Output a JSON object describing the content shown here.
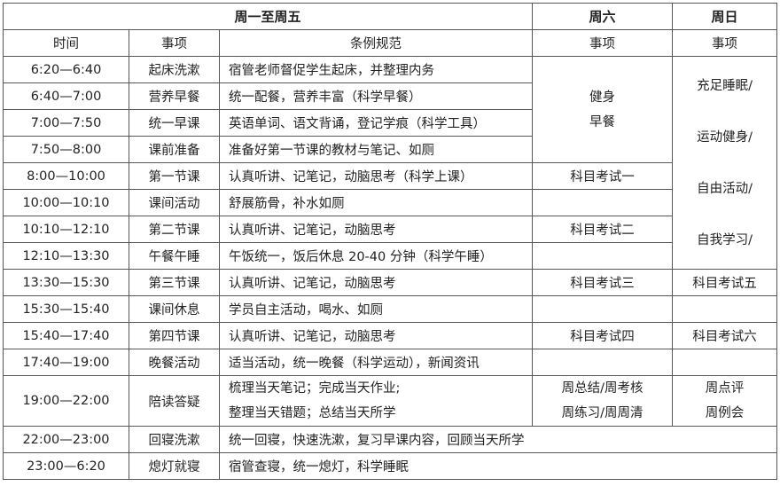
{
  "header": {
    "weekdays": "周一至周五",
    "saturday": "周六",
    "sunday": "周日"
  },
  "columns": {
    "time": "时间",
    "item": "事项",
    "rule": "条例规范",
    "sat_item": "事项",
    "sun_item": "事项"
  },
  "rows": [
    {
      "time": "6:20—6:40",
      "item": "起床洗漱",
      "rule": "宿管老师督促学生起床，并整理内务"
    },
    {
      "time": "6:40—7:00",
      "item": "营养早餐",
      "rule": "统一配餐，营养丰富（科学早餐）"
    },
    {
      "time": "7:00—7:50",
      "item": "统一早课",
      "rule": "英语单词、语文背诵，登记学痕（科学工具）"
    },
    {
      "time": "7:50—8:00",
      "item": "课前准备",
      "rule": "准备好第一节课的教材与笔记、如厕"
    },
    {
      "time": "8:00—10:00",
      "item": "第一节课",
      "rule": "认真听讲、记笔记，动脑思考（科学上课）"
    },
    {
      "time": "10:00—10:10",
      "item": "课间活动",
      "rule": "舒展筋骨，补水如厕"
    },
    {
      "time": "10:10—12:10",
      "item": "第二节课",
      "rule": "认真听讲、记笔记，动脑思考"
    },
    {
      "time": "12:10—13:30",
      "item": "午餐午睡",
      "rule": "午饭统一，饭后休息 20-40 分钟（科学午睡）"
    },
    {
      "time": "13:30—15:30",
      "item": "第三节课",
      "rule": "认真听讲、记笔记，动脑思考"
    },
    {
      "time": "15:30—15:40",
      "item": "课间休息",
      "rule": "学员自主活动，喝水、如厕"
    },
    {
      "time": "15:40—17:40",
      "item": "第四节课",
      "rule": "认真听讲、记笔记，动脑思考"
    },
    {
      "time": "17:40—19:00",
      "item": "晚餐活动",
      "rule": "适当活动，统一晚餐（科学运动），新闻资讯"
    },
    {
      "time": "19:00—22:00",
      "item": "陪读答疑",
      "rule_lines": [
        "梳理当天笔记；完成当天作业;",
        "整理当天错题；总结当天所学"
      ]
    },
    {
      "time": "22:00—23:00",
      "item": "回寝洗漱",
      "rule": "统一回寝，快速洗漱，复习早课内容，回顾当天所学"
    },
    {
      "time": "23:00—6:20",
      "item": "熄灯就寝",
      "rule": "宿管查寝，统一熄灯，科学睡眠"
    }
  ],
  "saturday": {
    "morning": [
      "健身",
      "早餐"
    ],
    "exam1": "科目考试一",
    "exam2": "科目考试二",
    "exam3": "科目考试三",
    "exam4": "科目考试四",
    "evening": [
      "周总结/周考核",
      "周练习/周周清"
    ]
  },
  "sunday": {
    "daytime": [
      "充足睡眠/",
      "运动健身/",
      "自由活动/",
      "自我学习/"
    ],
    "exam5": "科目考试五",
    "exam6": "科目考试六",
    "evening": [
      "周点评",
      "周例会"
    ]
  }
}
